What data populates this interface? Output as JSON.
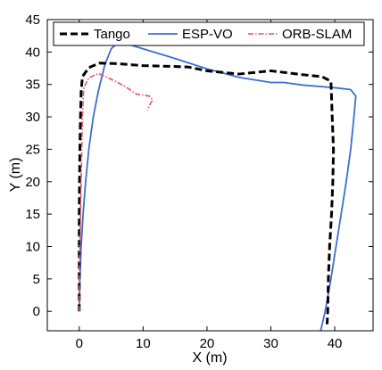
{
  "chart_data": {
    "type": "line",
    "xlabel": "X (m)",
    "ylabel": "Y (m)",
    "xlim": [
      -5,
      46
    ],
    "ylim": [
      -3,
      45
    ],
    "xticks": [
      0,
      10,
      20,
      30,
      40
    ],
    "yticks": [
      0,
      5,
      10,
      15,
      20,
      25,
      30,
      35,
      40,
      45
    ],
    "grid": false,
    "legend_position": "top",
    "series": [
      {
        "name": "Tango",
        "color": "#000000",
        "style": "dashed",
        "points": [
          [
            0,
            0
          ],
          [
            0,
            5
          ],
          [
            0,
            10
          ],
          [
            0,
            15
          ],
          [
            0.05,
            20
          ],
          [
            0.1,
            25
          ],
          [
            0.2,
            30
          ],
          [
            0.3,
            34
          ],
          [
            0.5,
            36.2
          ],
          [
            1.5,
            37.6
          ],
          [
            3.2,
            38.3
          ],
          [
            6,
            38.2
          ],
          [
            10,
            37.9
          ],
          [
            14,
            37.8
          ],
          [
            17,
            37.7
          ],
          [
            20,
            37.1
          ],
          [
            25,
            36.6
          ],
          [
            30,
            37.1
          ],
          [
            35,
            36.5
          ],
          [
            38,
            36.2
          ],
          [
            39.4,
            35.5
          ],
          [
            39.5,
            33
          ],
          [
            39.6,
            30
          ],
          [
            39.8,
            25
          ],
          [
            39.7,
            20
          ],
          [
            39.5,
            15
          ],
          [
            39.2,
            10
          ],
          [
            39,
            5
          ],
          [
            38.9,
            0
          ],
          [
            38.8,
            -2
          ]
        ]
      },
      {
        "name": "ESP-VO",
        "color": "#3b6fd4",
        "style": "solid",
        "points": [
          [
            0,
            0
          ],
          [
            0.1,
            5
          ],
          [
            0.3,
            10
          ],
          [
            0.6,
            15
          ],
          [
            1.0,
            20
          ],
          [
            1.5,
            25
          ],
          [
            2.2,
            30
          ],
          [
            3,
            34
          ],
          [
            4,
            38
          ],
          [
            5,
            40.5
          ],
          [
            6,
            41.4
          ],
          [
            8,
            41.1
          ],
          [
            10,
            40.5
          ],
          [
            15,
            39
          ],
          [
            20,
            37.4
          ],
          [
            25,
            36.1
          ],
          [
            30,
            35.3
          ],
          [
            32,
            35.3
          ],
          [
            35,
            34.9
          ],
          [
            40,
            34.5
          ],
          [
            42.5,
            34.2
          ],
          [
            43.3,
            33.2
          ],
          [
            43,
            30
          ],
          [
            42.5,
            25
          ],
          [
            41.8,
            20
          ],
          [
            41,
            15
          ],
          [
            40.2,
            10
          ],
          [
            39.4,
            5
          ],
          [
            38.5,
            0
          ],
          [
            37.8,
            -3
          ]
        ]
      },
      {
        "name": "ORB-SLAM",
        "color": "#e8506a",
        "style": "dashdot",
        "points": [
          [
            0,
            0
          ],
          [
            0,
            5
          ],
          [
            0.1,
            10
          ],
          [
            0.2,
            15
          ],
          [
            0.3,
            20
          ],
          [
            0.4,
            25
          ],
          [
            0.5,
            30
          ],
          [
            0.7,
            34.5
          ],
          [
            1.5,
            36
          ],
          [
            3,
            36.7
          ],
          [
            5,
            35.8
          ],
          [
            7,
            34.8
          ],
          [
            9,
            33.5
          ],
          [
            11,
            33.2
          ],
          [
            11.5,
            32.6
          ],
          [
            11,
            31.8
          ],
          [
            10.7,
            31
          ]
        ]
      }
    ]
  }
}
